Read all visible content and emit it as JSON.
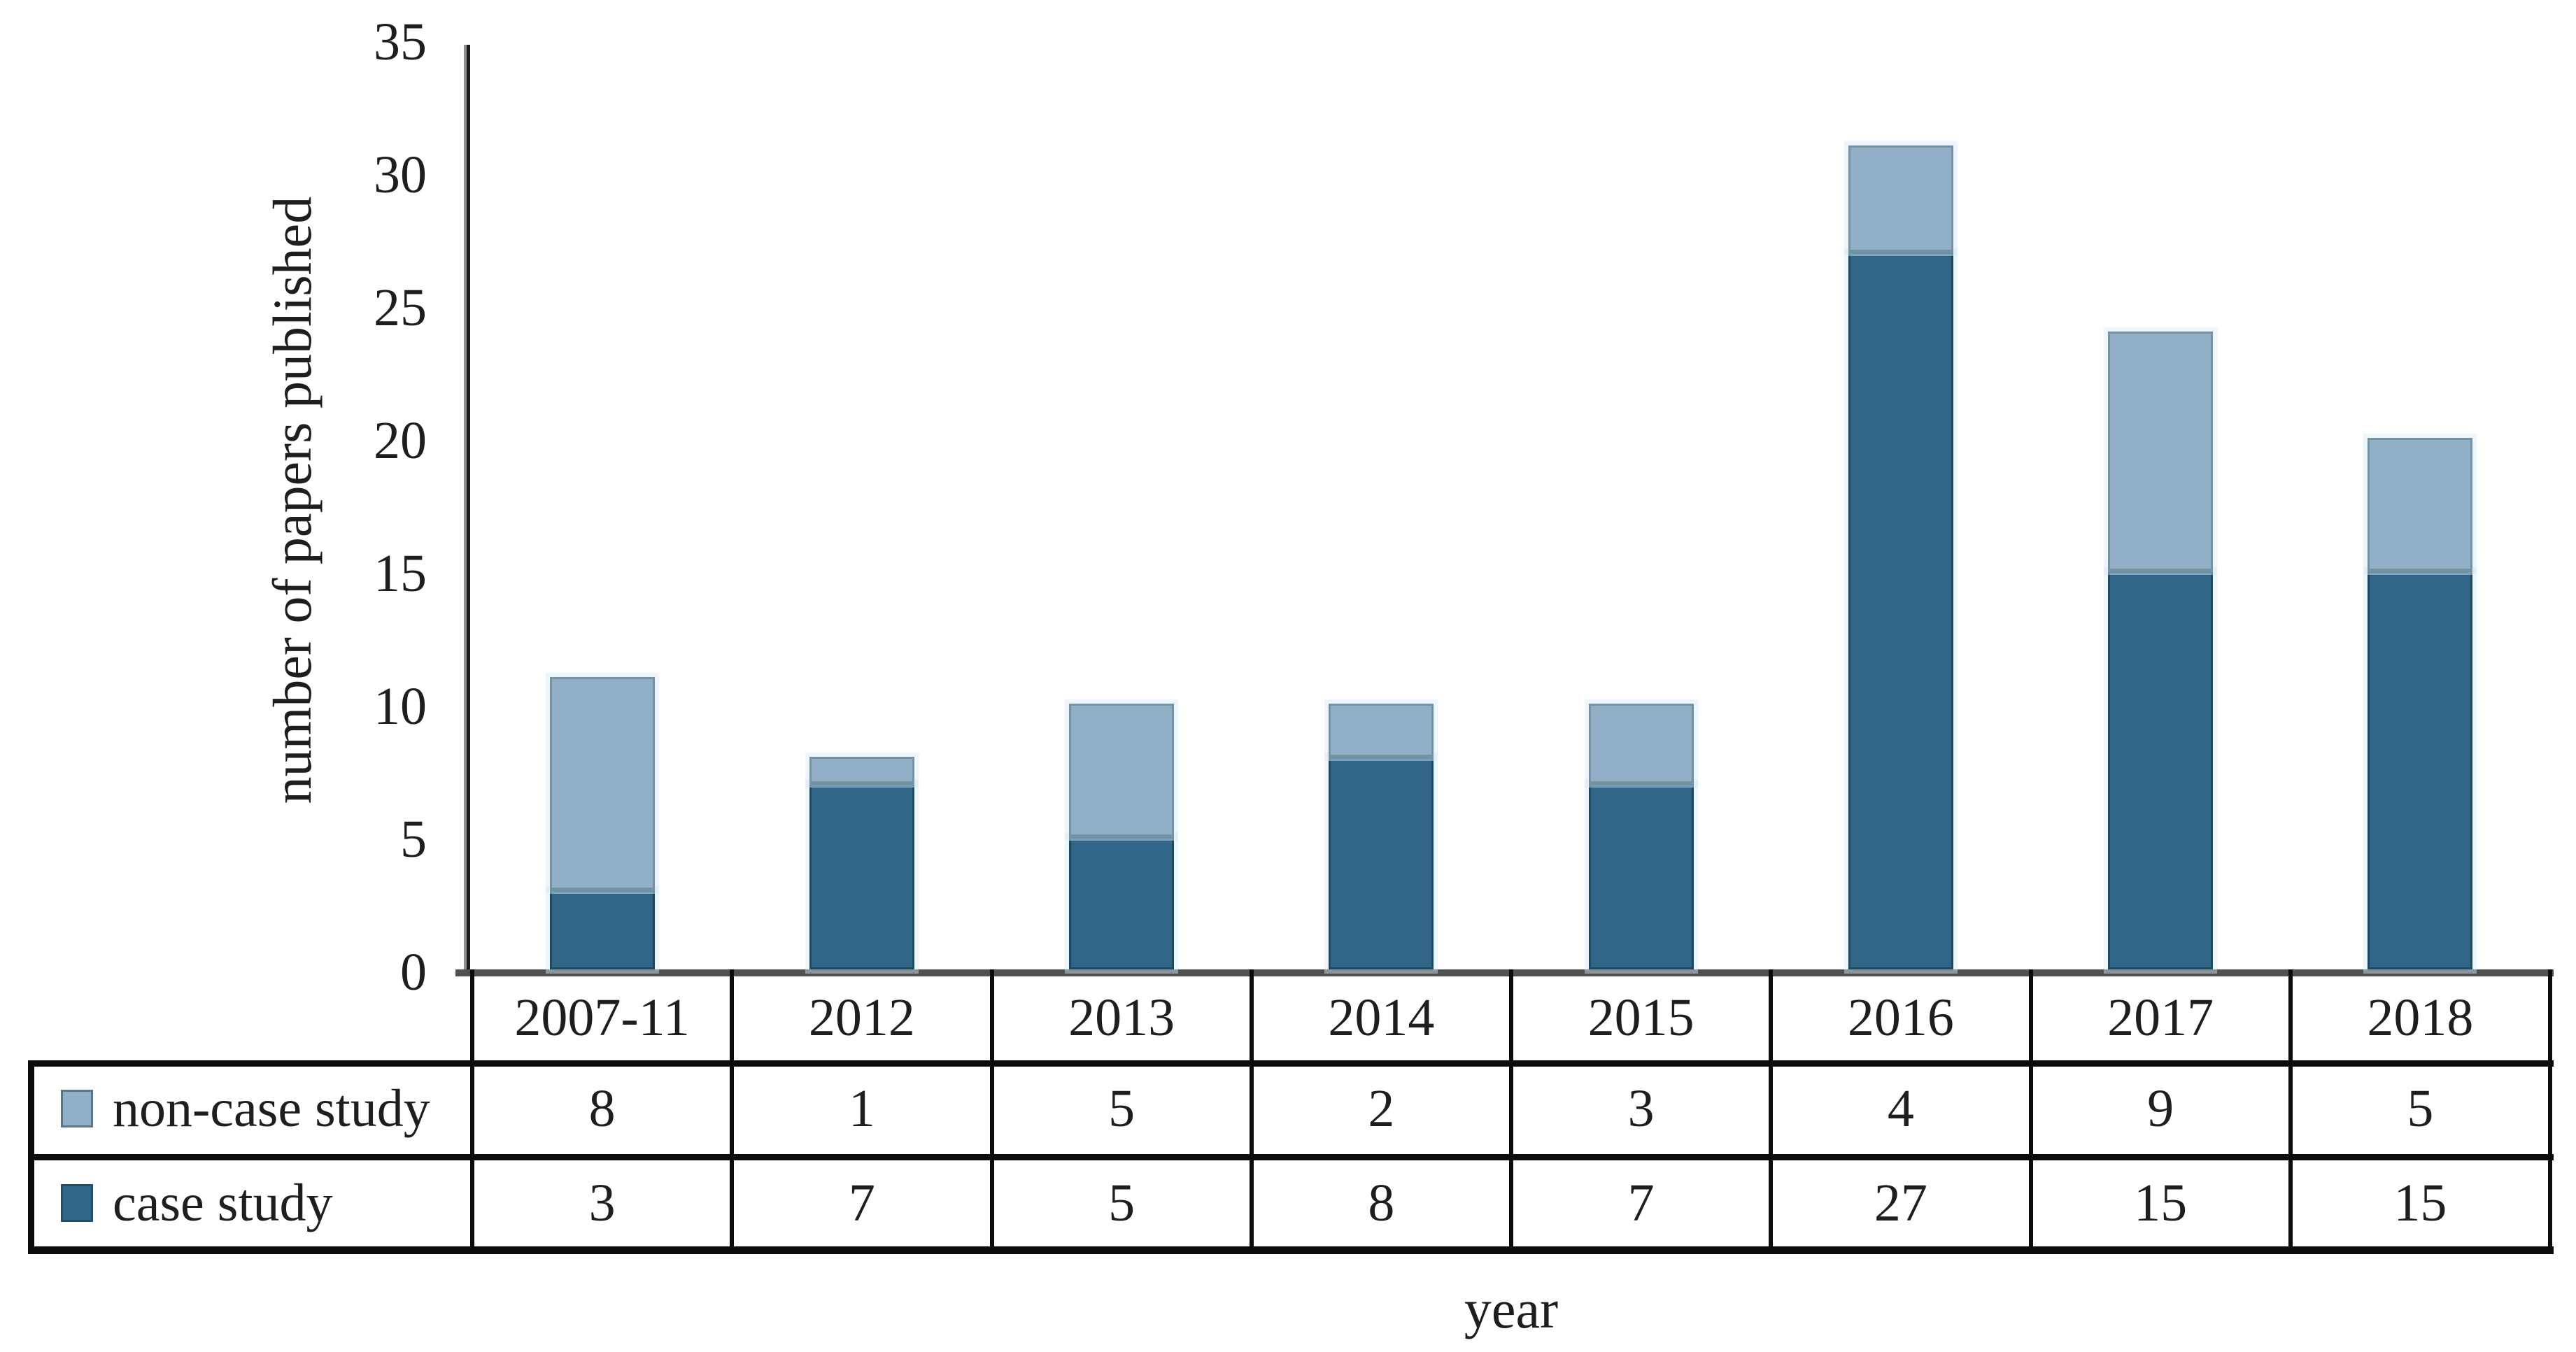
{
  "chart_data": {
    "type": "bar",
    "stacked": true,
    "title": "",
    "xlabel": "year",
    "ylabel": "number of papers published",
    "categories": [
      "2007-11",
      "2012",
      "2013",
      "2014",
      "2015",
      "2016",
      "2017",
      "2018"
    ],
    "series": [
      {
        "name": "non-case study",
        "values": [
          8,
          1,
          5,
          2,
          3,
          4,
          9,
          5
        ],
        "color": "#91AFC7",
        "border_color": "#74929F",
        "stack_level": 1
      },
      {
        "name": "case study",
        "values": [
          3,
          7,
          5,
          8,
          7,
          27,
          15,
          15
        ],
        "color": "#316689",
        "border_color": "#1B4A63",
        "stack_level": 0
      }
    ],
    "ylim": [
      0,
      35
    ],
    "yticks": [
      0,
      5,
      10,
      15,
      20,
      25,
      30,
      35
    ],
    "grid": false,
    "legend_position": "table-rows-left",
    "axis_color": "#515154",
    "table_border_color": "#0c0c0c",
    "text_color": "#1e1e1e"
  }
}
